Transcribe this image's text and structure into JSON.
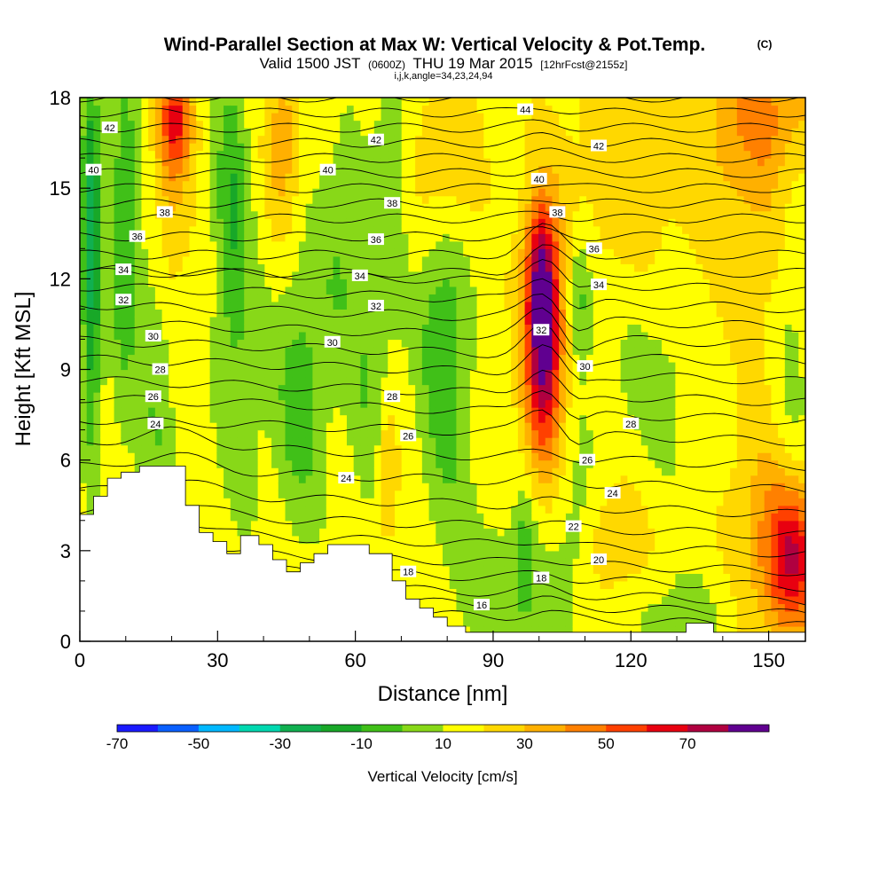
{
  "chart_data": {
    "type": "heatmap",
    "title": "Wind-Parallel Section at Max W: Vertical Velocity & Pot.Temp.",
    "title_mark": "(C)",
    "subtitle_parts": [
      "Valid 1500 JST",
      "(0600Z)",
      "THU 19 Mar 2015",
      "[12hrFcst@2155z]"
    ],
    "subtitle2": "i,j,k,angle=34,23,24,94",
    "xlabel": "Distance [nm]",
    "ylabel": "Height [Kft MSL]",
    "xlim": [
      0,
      158
    ],
    "ylim": [
      0,
      18
    ],
    "x_ticks": [
      0,
      30,
      60,
      90,
      120,
      150
    ],
    "y_ticks": [
      0,
      3,
      6,
      9,
      12,
      15,
      18
    ],
    "colorbar": {
      "label": "Vertical Velocity [cm/s]",
      "tick_labels": [
        "-70",
        "-50",
        "-30",
        "-10",
        "10",
        "30",
        "50",
        "70"
      ],
      "boundaries": [
        -80,
        -70,
        -60,
        -50,
        -40,
        -30,
        -20,
        -10,
        0,
        10,
        20,
        30,
        40,
        50,
        60,
        70,
        80
      ],
      "colors": [
        "#1a1aff",
        "#0a60ff",
        "#00b8ff",
        "#00d8b0",
        "#10b050",
        "#18a828",
        "#40c018",
        "#88d818",
        "#ffff00",
        "#ffd800",
        "#ffb000",
        "#ff8000",
        "#ff4000",
        "#e80010",
        "#b00040",
        "#600090"
      ]
    },
    "terrain": [
      [
        0,
        4.2
      ],
      [
        3,
        4.2
      ],
      [
        3,
        4.8
      ],
      [
        6,
        4.8
      ],
      [
        6,
        5.4
      ],
      [
        9,
        5.4
      ],
      [
        9,
        5.6
      ],
      [
        13,
        5.6
      ],
      [
        13,
        5.8
      ],
      [
        23,
        5.8
      ],
      [
        23,
        4.5
      ],
      [
        26,
        4.5
      ],
      [
        26,
        3.6
      ],
      [
        29,
        3.6
      ],
      [
        29,
        3.3
      ],
      [
        32,
        3.3
      ],
      [
        32,
        2.9
      ],
      [
        35,
        2.9
      ],
      [
        35,
        3.5
      ],
      [
        39,
        3.5
      ],
      [
        39,
        3.2
      ],
      [
        42,
        3.2
      ],
      [
        42,
        2.7
      ],
      [
        45,
        2.7
      ],
      [
        45,
        2.3
      ],
      [
        48,
        2.3
      ],
      [
        48,
        2.6
      ],
      [
        51,
        2.6
      ],
      [
        51,
        2.9
      ],
      [
        54,
        2.9
      ],
      [
        54,
        3.2
      ],
      [
        63,
        3.2
      ],
      [
        63,
        2.9
      ],
      [
        68,
        2.9
      ],
      [
        68,
        2.0
      ],
      [
        71,
        2.0
      ],
      [
        71,
        1.4
      ],
      [
        74,
        1.4
      ],
      [
        74,
        1.1
      ],
      [
        77,
        1.1
      ],
      [
        77,
        0.8
      ],
      [
        80,
        0.8
      ],
      [
        80,
        0.5
      ],
      [
        84,
        0.5
      ],
      [
        84,
        0.3
      ],
      [
        132,
        0.3
      ],
      [
        132,
        0.6
      ],
      [
        138,
        0.6
      ],
      [
        138,
        0.3
      ],
      [
        158,
        0.3
      ],
      [
        158,
        0
      ],
      [
        0,
        0
      ]
    ],
    "w_features": [
      {
        "x": 2.5,
        "z": 13,
        "sx": 1.5,
        "sz": 4.5,
        "w": -42
      },
      {
        "x": 9.5,
        "z": 14,
        "sx": 2.5,
        "sz": 5,
        "w": -22
      },
      {
        "x": 17,
        "z": 9.5,
        "sx": 3,
        "sz": 5,
        "w": -18
      },
      {
        "x": 19,
        "z": 15,
        "sx": 3,
        "sz": 3.5,
        "w": 22
      },
      {
        "x": 21,
        "z": 17.3,
        "sx": 2.5,
        "sz": 1.2,
        "w": 35
      },
      {
        "x": 33,
        "z": 15,
        "sx": 2.5,
        "sz": 3.5,
        "w": -22
      },
      {
        "x": 35,
        "z": 9,
        "sx": 4,
        "sz": 4,
        "w": -12
      },
      {
        "x": 44,
        "z": 16.5,
        "sx": 2.5,
        "sz": 2,
        "w": 22
      },
      {
        "x": 48,
        "z": 8,
        "sx": 4,
        "sz": 3,
        "w": -22
      },
      {
        "x": 57,
        "z": 13,
        "sx": 4,
        "sz": 3,
        "w": -15
      },
      {
        "x": 63,
        "z": 8.5,
        "sx": 3,
        "sz": 3,
        "w": -14
      },
      {
        "x": 67,
        "z": 5.5,
        "sx": 1.5,
        "sz": 1.5,
        "w": 20
      },
      {
        "x": 68,
        "z": 16,
        "sx": 2.5,
        "sz": 3.5,
        "w": -14
      },
      {
        "x": 80,
        "z": 16,
        "sx": 5,
        "sz": 2,
        "w": 14
      },
      {
        "x": 79,
        "z": 10.5,
        "sx": 4,
        "sz": 2.5,
        "w": -22
      },
      {
        "x": 80,
        "z": 6,
        "sx": 4,
        "sz": 2.5,
        "w": -12
      },
      {
        "x": 93,
        "z": 1.5,
        "sx": 8,
        "sz": 2,
        "w": -14
      },
      {
        "x": 97,
        "z": 3,
        "sx": 1.5,
        "sz": 1.5,
        "w": -15
      },
      {
        "x": 101,
        "z": 10,
        "sx": 3,
        "sz": 2.8,
        "w": 72
      },
      {
        "x": 100,
        "z": 12.5,
        "sx": 2,
        "sz": 1.5,
        "w": 25
      },
      {
        "x": 108,
        "z": 4,
        "sx": 3,
        "sz": 2,
        "w": -10
      },
      {
        "x": 109,
        "z": 11.5,
        "sx": 2,
        "sz": 1.5,
        "w": -22
      },
      {
        "x": 125,
        "z": 9.5,
        "sx": 12,
        "sz": 3,
        "w": -14
      },
      {
        "x": 118,
        "z": 14,
        "sx": 10,
        "sz": 4,
        "w": 12
      },
      {
        "x": 145,
        "z": 14,
        "sx": 10,
        "sz": 4,
        "w": 14
      },
      {
        "x": 150,
        "z": 17.5,
        "sx": 8,
        "sz": 1.5,
        "w": 20
      },
      {
        "x": 117,
        "z": 3.5,
        "sx": 5,
        "sz": 1.5,
        "w": 14
      },
      {
        "x": 155,
        "z": 2.7,
        "sx": 4,
        "sz": 1.8,
        "w": 55
      },
      {
        "x": 148,
        "z": 4,
        "sx": 5,
        "sz": 2.5,
        "w": 15
      },
      {
        "x": 130,
        "z": 1,
        "sx": 8,
        "sz": 1,
        "w": -10
      },
      {
        "x": 155,
        "z": 10,
        "sx": 3,
        "sz": 5,
        "w": -12
      }
    ],
    "theta_contour_labels": [
      {
        "text": "42",
        "x": 6.5,
        "z": 17
      },
      {
        "text": "40",
        "x": 3,
        "z": 15.6
      },
      {
        "text": "38",
        "x": 18.5,
        "z": 14.2
      },
      {
        "text": "36",
        "x": 12.5,
        "z": 13.4
      },
      {
        "text": "34",
        "x": 9.5,
        "z": 12.3
      },
      {
        "text": "32",
        "x": 9.5,
        "z": 11.3
      },
      {
        "text": "30",
        "x": 16,
        "z": 10.1
      },
      {
        "text": "28",
        "x": 17.5,
        "z": 9
      },
      {
        "text": "26",
        "x": 16,
        "z": 8.1
      },
      {
        "text": "24",
        "x": 16.5,
        "z": 7.2
      },
      {
        "text": "42",
        "x": 64.5,
        "z": 16.6
      },
      {
        "text": "40",
        "x": 54,
        "z": 15.6
      },
      {
        "text": "38",
        "x": 68,
        "z": 14.5
      },
      {
        "text": "36",
        "x": 64.5,
        "z": 13.3
      },
      {
        "text": "34",
        "x": 61,
        "z": 12.1
      },
      {
        "text": "32",
        "x": 64.5,
        "z": 11.1
      },
      {
        "text": "30",
        "x": 55,
        "z": 9.9
      },
      {
        "text": "28",
        "x": 68,
        "z": 8.1
      },
      {
        "text": "26",
        "x": 71.5,
        "z": 6.8
      },
      {
        "text": "24",
        "x": 58,
        "z": 5.4
      },
      {
        "text": "18",
        "x": 71.5,
        "z": 2.3
      },
      {
        "text": "16",
        "x": 87.5,
        "z": 1.2
      },
      {
        "text": "44",
        "x": 97,
        "z": 17.6
      },
      {
        "text": "42",
        "x": 113,
        "z": 16.4
      },
      {
        "text": "40",
        "x": 100,
        "z": 15.3
      },
      {
        "text": "38",
        "x": 104,
        "z": 14.2
      },
      {
        "text": "36",
        "x": 112,
        "z": 13
      },
      {
        "text": "34",
        "x": 113,
        "z": 11.8
      },
      {
        "text": "32",
        "x": 100.5,
        "z": 10.3
      },
      {
        "text": "30",
        "x": 110,
        "z": 9.1
      },
      {
        "text": "28",
        "x": 120,
        "z": 7.2
      },
      {
        "text": "26",
        "x": 110.5,
        "z": 6
      },
      {
        "text": "24",
        "x": 116,
        "z": 4.9
      },
      {
        "text": "22",
        "x": 107.5,
        "z": 3.8
      },
      {
        "text": "20",
        "x": 113,
        "z": 2.7
      },
      {
        "text": "18",
        "x": 100.5,
        "z": 2.1
      }
    ]
  }
}
